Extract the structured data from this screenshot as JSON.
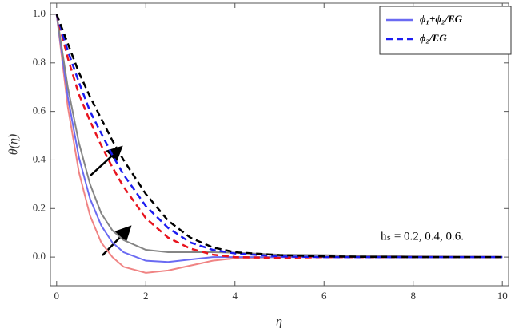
{
  "chart_data": {
    "type": "line",
    "x_label": "η",
    "y_label": "θ(η)",
    "annotation": "hₛ = 0.2, 0.4, 0.6.",
    "x": [
      0,
      0.25,
      0.5,
      0.75,
      1,
      1.25,
      1.5,
      2,
      2.5,
      3,
      3.5,
      4,
      5,
      6,
      7,
      8,
      10
    ],
    "series": [
      {
        "color": "#f08484",
        "dash": false,
        "values": [
          1,
          0.62,
          0.35,
          0.17,
          0.06,
          0.0,
          -0.04,
          -0.065,
          -0.055,
          -0.035,
          -0.015,
          -0.005,
          0,
          0,
          0,
          0,
          0
        ]
      },
      {
        "name": "ϕ₁+ϕ₂/EG",
        "color": "#6a6af2",
        "dash": false,
        "values": [
          1,
          0.66,
          0.41,
          0.24,
          0.13,
          0.06,
          0.02,
          -0.015,
          -0.02,
          -0.01,
          0,
          0,
          0,
          0,
          0,
          0,
          0
        ]
      },
      {
        "color": "#858585",
        "dash": false,
        "values": [
          1,
          0.7,
          0.47,
          0.3,
          0.18,
          0.11,
          0.07,
          0.03,
          0.02,
          0.02,
          0.02,
          0.018,
          0.01,
          0.008,
          0.005,
          0.003,
          0.001
        ]
      },
      {
        "color": "#e8141e",
        "dash": true,
        "values": [
          1,
          0.82,
          0.67,
          0.56,
          0.46,
          0.37,
          0.29,
          0.16,
          0.08,
          0.035,
          0.01,
          0,
          -0.003,
          0,
          0,
          0,
          0
        ]
      },
      {
        "name": "ϕ₂/EG",
        "color": "#1c1cf0",
        "dash": true,
        "values": [
          1,
          0.85,
          0.72,
          0.6,
          0.51,
          0.42,
          0.34,
          0.21,
          0.12,
          0.06,
          0.03,
          0.015,
          0.003,
          0,
          0,
          0,
          0
        ]
      },
      {
        "color": "#000000",
        "dash": true,
        "values": [
          1,
          0.88,
          0.76,
          0.66,
          0.57,
          0.48,
          0.4,
          0.26,
          0.15,
          0.08,
          0.04,
          0.02,
          0.008,
          0.003,
          0.001,
          0,
          0
        ]
      }
    ],
    "xlim": [
      -0.14,
      10.14
    ],
    "ylim": [
      -0.118,
      1.046
    ],
    "xticks": [
      0,
      2,
      4,
      6,
      8,
      10
    ],
    "yticks": [
      {
        "value": 0,
        "label": "0.0"
      },
      {
        "value": 0.2,
        "label": "0.2"
      },
      {
        "value": 0.4,
        "label": "0.4"
      },
      {
        "value": 0.6,
        "label": "0.6"
      },
      {
        "value": 0.8,
        "label": "0.8"
      },
      {
        "value": 1,
        "label": "1.0"
      }
    ],
    "legend": "top-right"
  }
}
